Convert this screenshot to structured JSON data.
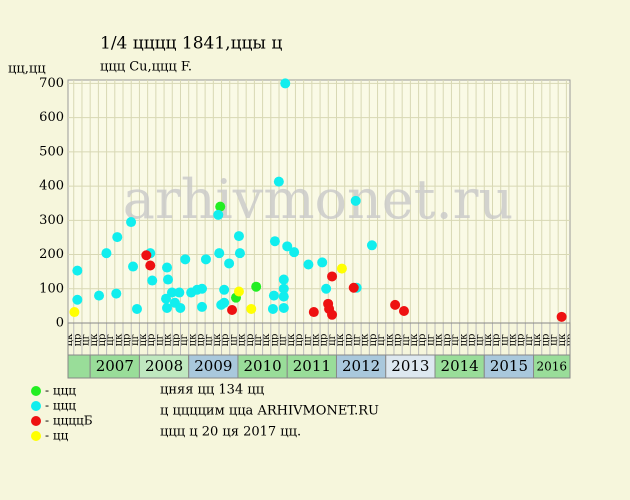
{
  "chart_data": {
    "type": "scatter",
    "title": "1/4 цццц 1841,ццы ц",
    "subtitle": "ццц Cu,ццц F.",
    "y_label": "цц,цц",
    "watermark": "arhivmonet.ru",
    "xlim": [
      2006.55,
      2016.74
    ],
    "ylim": [
      0,
      710
    ],
    "yticks": [
      0,
      100,
      200,
      300,
      400,
      500,
      600,
      700
    ],
    "grid": true,
    "years": [
      2007,
      2008,
      2009,
      2010,
      2011,
      2012,
      2013,
      2014,
      2015,
      2016
    ],
    "year_colors": [
      "#99dd99",
      "#bfe8bf",
      "#a9c8dc",
      "#99dd99",
      "#99dd99",
      "#a9c8dc",
      "#dde8f0",
      "#99dd99",
      "#a9c8dc",
      "#99dd99"
    ],
    "column_labels": [
      "цк",
      "цр",
      "цг",
      "цк",
      "цр",
      "цг"
    ],
    "series": [
      {
        "name": "- ццц",
        "color": "#22ee22",
        "x": [
          2009.64,
          2009.96,
          2010.37
        ],
        "values": [
          340,
          74,
          106
        ]
      },
      {
        "name": "- ццц",
        "color": "#11eeee",
        "x": [
          2006.74,
          2006.74,
          2007.18,
          2007.33,
          2007.53,
          2007.55,
          2007.83,
          2007.87,
          2007.95,
          2008.22,
          2008.26,
          2008.54,
          2008.56,
          2008.56,
          2008.58,
          2008.66,
          2008.72,
          2008.83,
          2008.81,
          2008.93,
          2009.05,
          2009.17,
          2009.27,
          2009.27,
          2009.35,
          2009.6,
          2009.62,
          2009.66,
          2009.72,
          2009.72,
          2009.82,
          2010.02,
          2010.04,
          2010.71,
          2010.75,
          2010.73,
          2010.83,
          2010.93,
          2010.93,
          2010.93,
          2010.93,
          2010.96,
          2011.0,
          2011.14,
          2011.43,
          2011.71,
          2011.79,
          2012.39,
          2012.41,
          2012.72
        ],
        "values": [
          153,
          68,
          80,
          204,
          86,
          251,
          295,
          165,
          41,
          204,
          124,
          71,
          162,
          44,
          127,
          89,
          59,
          44,
          89,
          186,
          89,
          97,
          100,
          47,
          186,
          316,
          204,
          53,
          97,
          59,
          174,
          254,
          204,
          41,
          239,
          80,
          413,
          44,
          77,
          100,
          127,
          700,
          224,
          207,
          171,
          177,
          100,
          357,
          103,
          227
        ]
      },
      {
        "name": "- ццццБ",
        "color": "#ee1111",
        "x": [
          2008.14,
          2008.22,
          2009.88,
          2011.54,
          2011.83,
          2011.85,
          2011.91,
          2011.91,
          2012.35,
          2013.19,
          2013.37,
          2016.57
        ],
        "values": [
          198,
          168,
          38,
          32,
          56,
          41,
          24,
          136,
          103,
          53,
          35,
          18
        ]
      },
      {
        "name": "- цц",
        "color": "#ffff00",
        "x": [
          2006.68,
          2010.02,
          2010.27,
          2012.11
        ],
        "values": [
          32,
          92,
          41,
          159
        ]
      }
    ],
    "notes": [
      "цняя цц 134 цц",
      "ц ццццим цца ARHIVMONET.RU",
      "ццц ц 20 ця 2017 цц."
    ]
  }
}
